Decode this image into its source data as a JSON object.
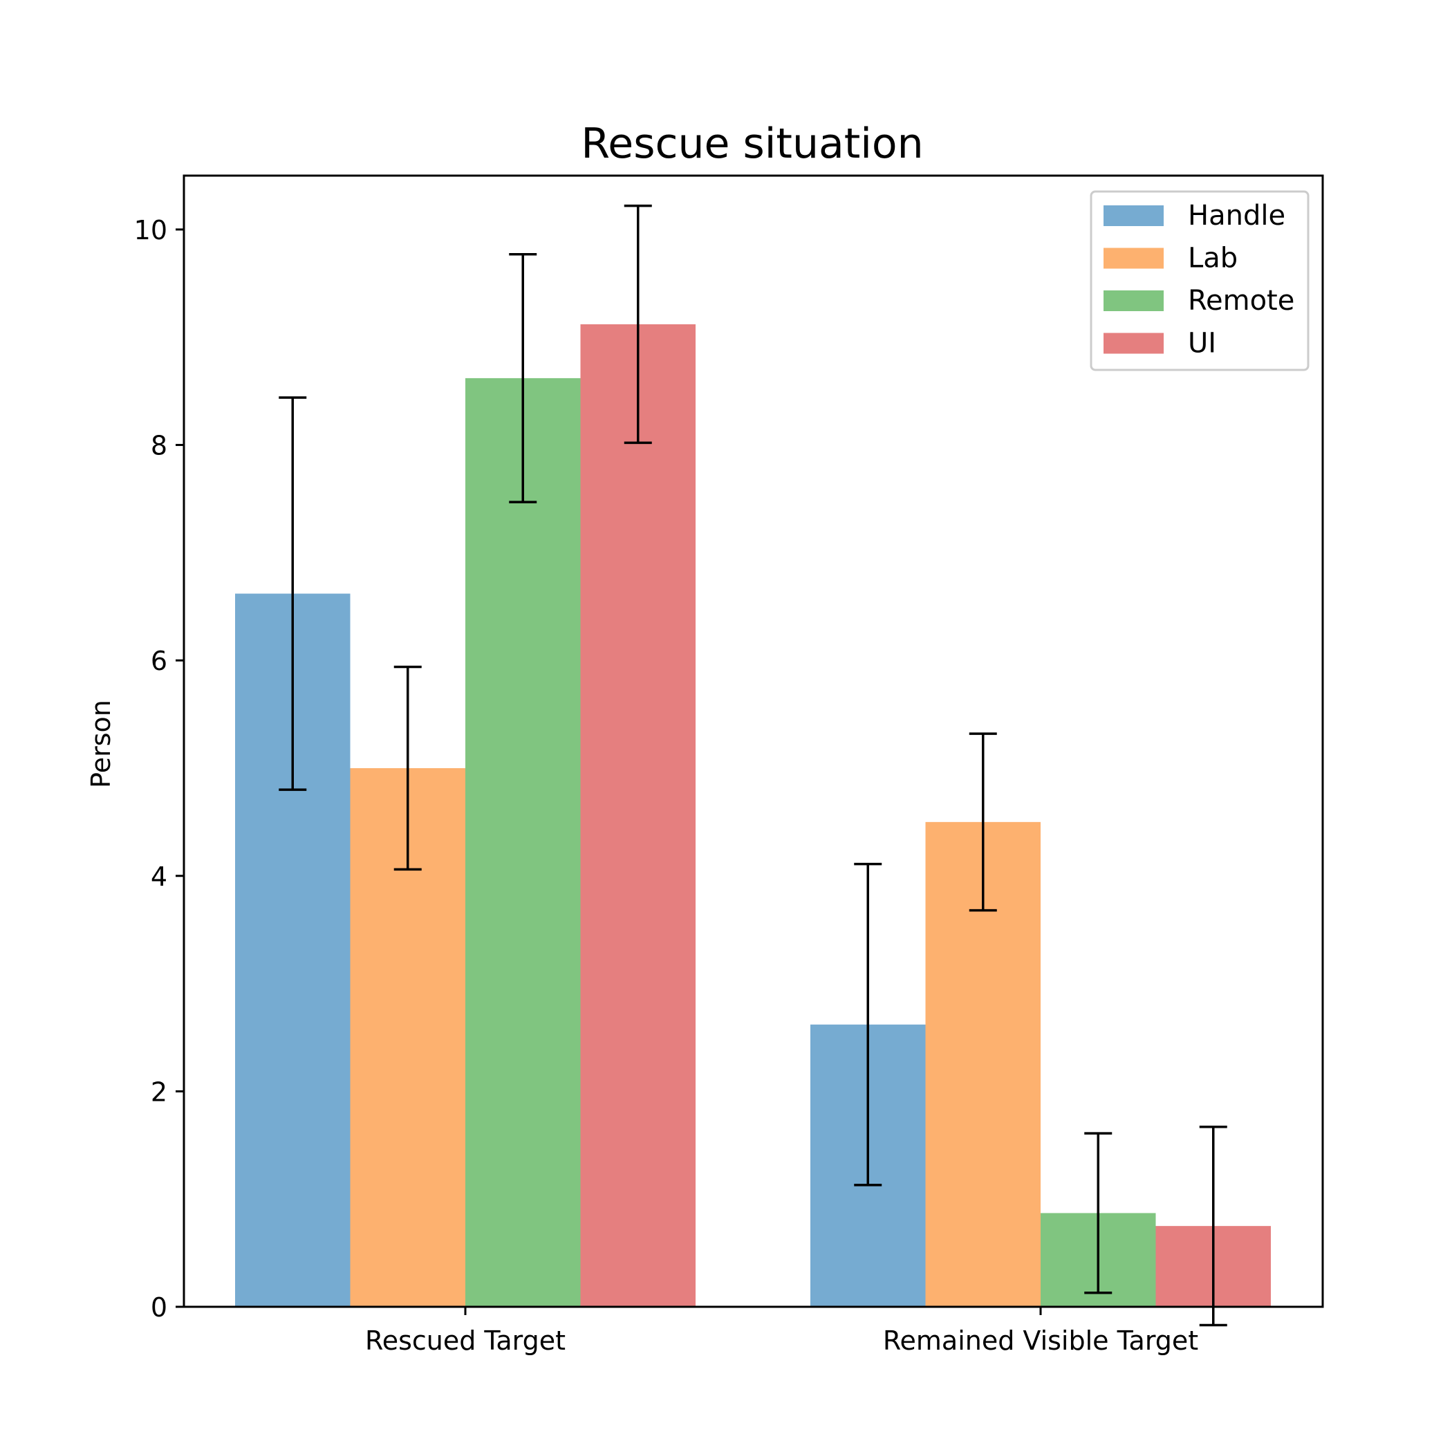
{
  "chart_data": {
    "type": "bar",
    "title": "Rescue situation",
    "xlabel": "",
    "ylabel": "Person",
    "ylim": [
      0,
      10.5
    ],
    "yticks": [
      0,
      2,
      4,
      6,
      8,
      10
    ],
    "grid": false,
    "legend_position": "top-right",
    "categories": [
      "Rescued Target",
      "Remained Visible Target"
    ],
    "series": [
      {
        "name": "Handle",
        "color": "#76abd1",
        "values": [
          6.62,
          2.62
        ],
        "error": [
          1.82,
          1.49
        ]
      },
      {
        "name": "Lab",
        "color": "#fdb16f",
        "values": [
          5.0,
          4.5
        ],
        "error": [
          0.94,
          0.82
        ]
      },
      {
        "name": "Remote",
        "color": "#80c580",
        "values": [
          8.62,
          0.87
        ],
        "error": [
          1.15,
          0.74
        ]
      },
      {
        "name": "UI",
        "color": "#e57f7f",
        "values": [
          9.12,
          0.75
        ],
        "error": [
          1.1,
          0.92
        ]
      }
    ]
  }
}
